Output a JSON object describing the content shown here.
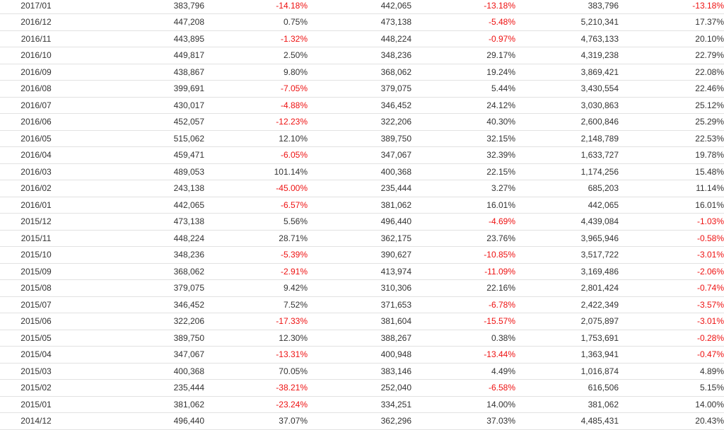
{
  "colors": {
    "negative": "#ee1111",
    "text": "#333333",
    "row_border": "#e2e2e2"
  },
  "rows": [
    [
      "2017/01",
      "383,796",
      "-14.18%",
      "442,065",
      "-13.18%",
      "383,796",
      "-13.18%"
    ],
    [
      "2016/12",
      "447,208",
      "0.75%",
      "473,138",
      "-5.48%",
      "5,210,341",
      "17.37%"
    ],
    [
      "2016/11",
      "443,895",
      "-1.32%",
      "448,224",
      "-0.97%",
      "4,763,133",
      "20.10%"
    ],
    [
      "2016/10",
      "449,817",
      "2.50%",
      "348,236",
      "29.17%",
      "4,319,238",
      "22.79%"
    ],
    [
      "2016/09",
      "438,867",
      "9.80%",
      "368,062",
      "19.24%",
      "3,869,421",
      "22.08%"
    ],
    [
      "2016/08",
      "399,691",
      "-7.05%",
      "379,075",
      "5.44%",
      "3,430,554",
      "22.46%"
    ],
    [
      "2016/07",
      "430,017",
      "-4.88%",
      "346,452",
      "24.12%",
      "3,030,863",
      "25.12%"
    ],
    [
      "2016/06",
      "452,057",
      "-12.23%",
      "322,206",
      "40.30%",
      "2,600,846",
      "25.29%"
    ],
    [
      "2016/05",
      "515,062",
      "12.10%",
      "389,750",
      "32.15%",
      "2,148,789",
      "22.53%"
    ],
    [
      "2016/04",
      "459,471",
      "-6.05%",
      "347,067",
      "32.39%",
      "1,633,727",
      "19.78%"
    ],
    [
      "2016/03",
      "489,053",
      "101.14%",
      "400,368",
      "22.15%",
      "1,174,256",
      "15.48%"
    ],
    [
      "2016/02",
      "243,138",
      "-45.00%",
      "235,444",
      "3.27%",
      "685,203",
      "11.14%"
    ],
    [
      "2016/01",
      "442,065",
      "-6.57%",
      "381,062",
      "16.01%",
      "442,065",
      "16.01%"
    ],
    [
      "2015/12",
      "473,138",
      "5.56%",
      "496,440",
      "-4.69%",
      "4,439,084",
      "-1.03%"
    ],
    [
      "2015/11",
      "448,224",
      "28.71%",
      "362,175",
      "23.76%",
      "3,965,946",
      "-0.58%"
    ],
    [
      "2015/10",
      "348,236",
      "-5.39%",
      "390,627",
      "-10.85%",
      "3,517,722",
      "-3.01%"
    ],
    [
      "2015/09",
      "368,062",
      "-2.91%",
      "413,974",
      "-11.09%",
      "3,169,486",
      "-2.06%"
    ],
    [
      "2015/08",
      "379,075",
      "9.42%",
      "310,306",
      "22.16%",
      "2,801,424",
      "-0.74%"
    ],
    [
      "2015/07",
      "346,452",
      "7.52%",
      "371,653",
      "-6.78%",
      "2,422,349",
      "-3.57%"
    ],
    [
      "2015/06",
      "322,206",
      "-17.33%",
      "381,604",
      "-15.57%",
      "2,075,897",
      "-3.01%"
    ],
    [
      "2015/05",
      "389,750",
      "12.30%",
      "388,267",
      "0.38%",
      "1,753,691",
      "-0.28%"
    ],
    [
      "2015/04",
      "347,067",
      "-13.31%",
      "400,948",
      "-13.44%",
      "1,363,941",
      "-0.47%"
    ],
    [
      "2015/03",
      "400,368",
      "70.05%",
      "383,146",
      "4.49%",
      "1,016,874",
      "4.89%"
    ],
    [
      "2015/02",
      "235,444",
      "-38.21%",
      "252,040",
      "-6.58%",
      "616,506",
      "5.15%"
    ],
    [
      "2015/01",
      "381,062",
      "-23.24%",
      "334,251",
      "14.00%",
      "381,062",
      "14.00%"
    ],
    [
      "2014/12",
      "496,440",
      "37.07%",
      "362,296",
      "37.03%",
      "4,485,431",
      "20.43%"
    ]
  ]
}
